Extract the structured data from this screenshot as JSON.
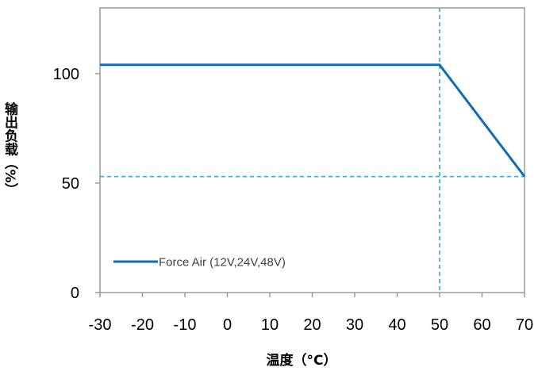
{
  "chart_data": {
    "type": "line",
    "title": "",
    "xlabel": "温度（°C）",
    "ylabel": "输出负载（%）",
    "xlim": [
      -30,
      70
    ],
    "ylim": [
      0,
      130
    ],
    "x_ticks": [
      "-30",
      "-20",
      "-10",
      "0",
      "10",
      "20",
      "30",
      "40",
      "50",
      "60",
      "70"
    ],
    "y_ticks": [
      "0",
      "50",
      "100"
    ],
    "series": [
      {
        "name": "Force Air (12V,24V,48V)",
        "color": "#0f6bb8",
        "x": [
          -30,
          50,
          70
        ],
        "y": [
          104,
          104,
          53
        ]
      }
    ],
    "reference_lines": [
      {
        "orientation": "vertical",
        "x": 50,
        "color": "#2ea8df",
        "style": "dashed"
      },
      {
        "orientation": "horizontal",
        "y": 53,
        "color": "#2ea8df",
        "style": "dashed"
      }
    ],
    "grid": false,
    "legend": "bottom-left"
  }
}
